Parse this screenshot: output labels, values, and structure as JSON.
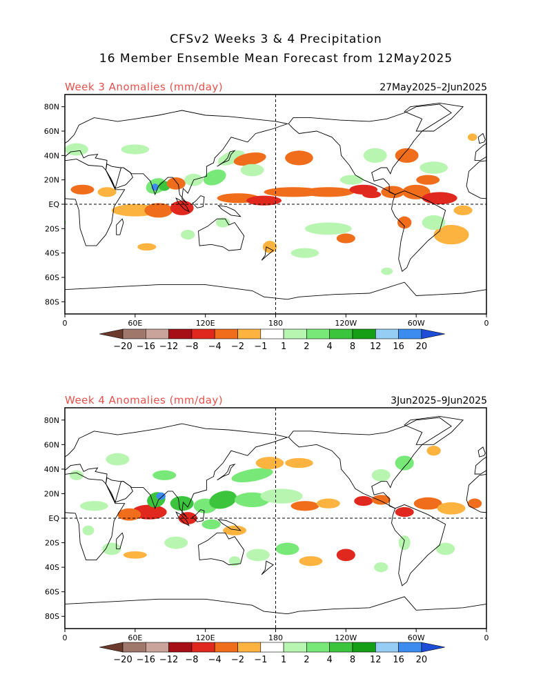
{
  "header": {
    "title_line1": "CFSv2 Weeks 3 & 4 Precipitation",
    "title_line2": "16 Member Ensemble Mean Forecast from 12May2025"
  },
  "panels": [
    {
      "title": "Week 3 Anomalies (mm/day)",
      "dates": "27May2025–2Jun2025"
    },
    {
      "title": "Week 4 Anomalies (mm/day)",
      "dates": "3Jun2025–9Jun2025"
    }
  ],
  "axes": {
    "lat_labels": [
      "80N",
      "60N",
      "40N",
      "20N",
      "EQ",
      "20S",
      "40S",
      "60S",
      "80S"
    ],
    "lat_values": [
      80,
      60,
      40,
      20,
      0,
      -20,
      -40,
      -60,
      -80
    ],
    "lon_labels": [
      "0",
      "60E",
      "120E",
      "180",
      "120W",
      "60W",
      "0"
    ],
    "lon_values": [
      0,
      60,
      120,
      180,
      240,
      300,
      360
    ]
  },
  "colorbar": {
    "labels": [
      "−20",
      "−16",
      "−12",
      "−8",
      "−4",
      "−2",
      "−1",
      "1",
      "2",
      "4",
      "8",
      "12",
      "16",
      "20"
    ],
    "colors": [
      "#6b3a2c",
      "#a0776b",
      "#c9a49a",
      "#a50f15",
      "#e0281e",
      "#f06d1b",
      "#fdb33f",
      "#ffffff",
      "#b8f5b0",
      "#78e878",
      "#3cc43c",
      "#169e16",
      "#96cdf5",
      "#3c8cf0",
      "#1e4ed8"
    ]
  },
  "map_colors": {
    "dry_light": "#fdb33f",
    "dry_mid": "#f06d1b",
    "dry_strong": "#e0281e",
    "wet_light": "#b8f5b0",
    "wet_mid": "#78e878",
    "wet_strong": "#3cc43c",
    "wet_vstrong": "#169e16",
    "wet_extreme": "#3c8cf0"
  }
}
